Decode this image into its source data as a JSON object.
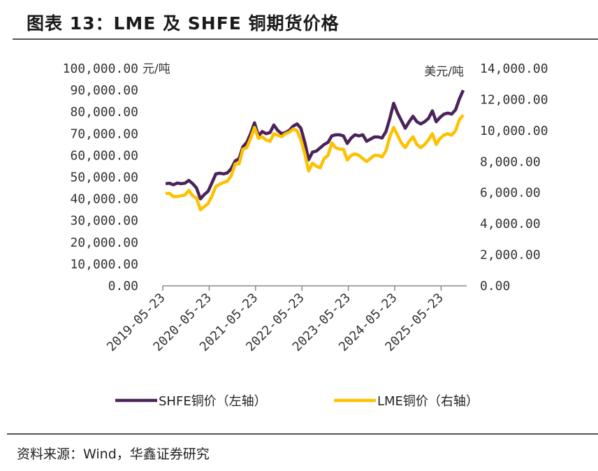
{
  "title": "图表 13：LME 及 SHFE 铜期货价格",
  "source": "资料来源：Wind，华鑫证券研究",
  "chart_data": {
    "type": "line",
    "title": "图表 13：LME 及 SHFE 铜期货价格",
    "left_unit": "元/吨",
    "right_unit": "美元/吨",
    "ylim_left": [
      0,
      100000
    ],
    "ylim_right": [
      0,
      14000
    ],
    "left_ticks": [
      "0.00",
      "10,000.00",
      "20,000.00",
      "30,000.00",
      "40,000.00",
      "50,000.00",
      "60,000.00",
      "70,000.00",
      "80,000.00",
      "90,000.00",
      "100,000.00"
    ],
    "right_ticks": [
      "0.00",
      "2,000.00",
      "4,000.00",
      "6,000.00",
      "8,000.00",
      "10,000.00",
      "12,000.00",
      "14,000.00"
    ],
    "x_ticks": [
      "2019-05-23",
      "2020-05-23",
      "2021-05-23",
      "2022-05-23",
      "2023-05-23",
      "2024-05-23",
      "2025-05-23"
    ],
    "grid": false,
    "legend_position": "bottom",
    "x": [
      "2019-06",
      "2019-07",
      "2019-08",
      "2019-09",
      "2019-10",
      "2019-11",
      "2019-12",
      "2020-01",
      "2020-02",
      "2020-03",
      "2020-04",
      "2020-05",
      "2020-06",
      "2020-07",
      "2020-08",
      "2020-09",
      "2020-10",
      "2020-11",
      "2020-12",
      "2021-01",
      "2021-02",
      "2021-03",
      "2021-04",
      "2021-05",
      "2021-06",
      "2021-07",
      "2021-08",
      "2021-09",
      "2021-10",
      "2021-11",
      "2021-12",
      "2022-01",
      "2022-02",
      "2022-03",
      "2022-04",
      "2022-05",
      "2022-06",
      "2022-07",
      "2022-08",
      "2022-09",
      "2022-10",
      "2022-11",
      "2022-12",
      "2023-01",
      "2023-02",
      "2023-03",
      "2023-04",
      "2023-05",
      "2023-06",
      "2023-07",
      "2023-08",
      "2023-09",
      "2023-10",
      "2023-11",
      "2023-12",
      "2024-01",
      "2024-02",
      "2024-03",
      "2024-04",
      "2024-05",
      "2024-06",
      "2024-07",
      "2024-08",
      "2024-09",
      "2024-10",
      "2024-11",
      "2024-12",
      "2025-01",
      "2025-02",
      "2025-03",
      "2025-04",
      "2025-05",
      "2025-06",
      "2025-07",
      "2025-08",
      "2025-09",
      "2025-10",
      "2025-11"
    ],
    "series": [
      {
        "name": "SHFE铜价（左轴）",
        "axis": "left",
        "color": "#4a235a",
        "values": [
          47000,
          47200,
          46500,
          47300,
          47000,
          47200,
          48500,
          47000,
          45000,
          40000,
          42000,
          43500,
          47500,
          51500,
          51800,
          51500,
          52000,
          54000,
          57500,
          58500,
          64000,
          66000,
          70000,
          75000,
          69000,
          71000,
          70000,
          70500,
          74000,
          71500,
          70000,
          70500,
          71500,
          73500,
          74500,
          72500,
          66000,
          58000,
          61500,
          62000,
          63500,
          65000,
          66000,
          69000,
          69500,
          69500,
          69000,
          65500,
          68000,
          69500,
          69000,
          69500,
          66500,
          67500,
          68500,
          68500,
          68000,
          71000,
          77000,
          84000,
          79500,
          76000,
          72500,
          75500,
          78000,
          75500,
          74500,
          75500,
          77000,
          80500,
          75500,
          77500,
          79000,
          79500,
          79000,
          81000,
          86000,
          90000
        ]
      },
      {
        "name": "LME铜价（右轴）",
        "axis": "right",
        "color": "#ffc000",
        "values": [
          5950,
          5950,
          5750,
          5750,
          5800,
          5850,
          6150,
          5800,
          5650,
          4900,
          5100,
          5300,
          5800,
          6400,
          6550,
          6650,
          6750,
          7100,
          7850,
          7850,
          8800,
          8900,
          9500,
          10200,
          9500,
          9600,
          9400,
          9300,
          9800,
          9700,
          9600,
          9800,
          9900,
          10100,
          10000,
          9400,
          8500,
          7400,
          7900,
          7700,
          7600,
          8200,
          8400,
          9200,
          8900,
          8800,
          8800,
          8100,
          8400,
          8500,
          8400,
          8200,
          8000,
          8200,
          8400,
          8400,
          8300,
          8700,
          9600,
          10200,
          9700,
          9200,
          8900,
          9300,
          9600,
          9100,
          8900,
          9100,
          9400,
          9800,
          9100,
          9500,
          9700,
          9800,
          9700,
          10000,
          10700,
          11000
        ]
      }
    ]
  }
}
